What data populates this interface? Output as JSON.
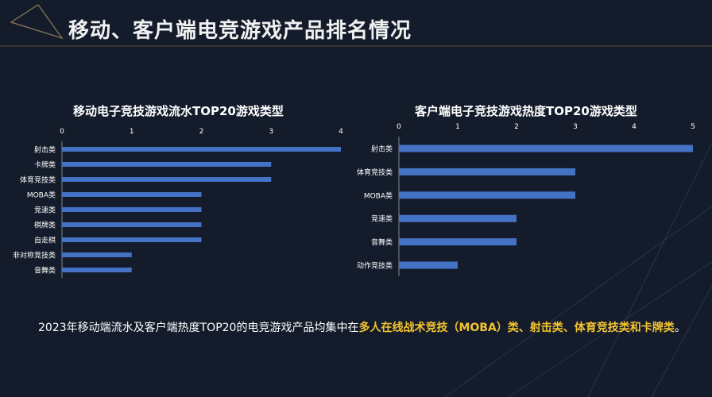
{
  "header": {
    "title": "移动、客户端电竞游戏产品排名情况"
  },
  "colors": {
    "bar": "#4472c4",
    "highlight": "#f4c430",
    "background": "#141c2b",
    "accent_line": "#8c7a52"
  },
  "chart_data": [
    {
      "type": "bar",
      "orientation": "horizontal",
      "title": "移动电子竞技游戏流水TOP20游戏类型",
      "categories": [
        "射击类",
        "卡牌类",
        "体育竞技类",
        "MOBA类",
        "竞速类",
        "棋牌类",
        "自走棋",
        "非对称竞技类",
        "音舞类"
      ],
      "values": [
        4,
        3,
        3,
        2,
        2,
        2,
        2,
        1,
        1
      ],
      "xlim": [
        0,
        4
      ],
      "ticks": [
        0,
        1,
        2,
        3,
        4
      ],
      "tick_labels": [
        "0",
        "1",
        "2",
        "3",
        "4"
      ],
      "axis_position": "top"
    },
    {
      "type": "bar",
      "orientation": "horizontal",
      "title": "客户端电子竞技游戏热度TOP20游戏类型",
      "categories": [
        "射击类",
        "体育竞技类",
        "MOBA类",
        "竞速类",
        "音舞类",
        "动作竞技类"
      ],
      "values": [
        5,
        3,
        3,
        2,
        2,
        1
      ],
      "xlim": [
        0,
        5
      ],
      "ticks": [
        0,
        1,
        2,
        3,
        4,
        5
      ],
      "tick_labels": [
        "0",
        "1",
        "2",
        "3",
        "4",
        "5"
      ],
      "axis_position": "top"
    }
  ],
  "summary": {
    "prefix": "2023年移动端流水及客户端热度TOP20的电竞游戏产品均集中在",
    "highlight": "多人在线战术竞技（MOBA）类、射击类、体育竞技类和卡牌类",
    "suffix": "。"
  }
}
